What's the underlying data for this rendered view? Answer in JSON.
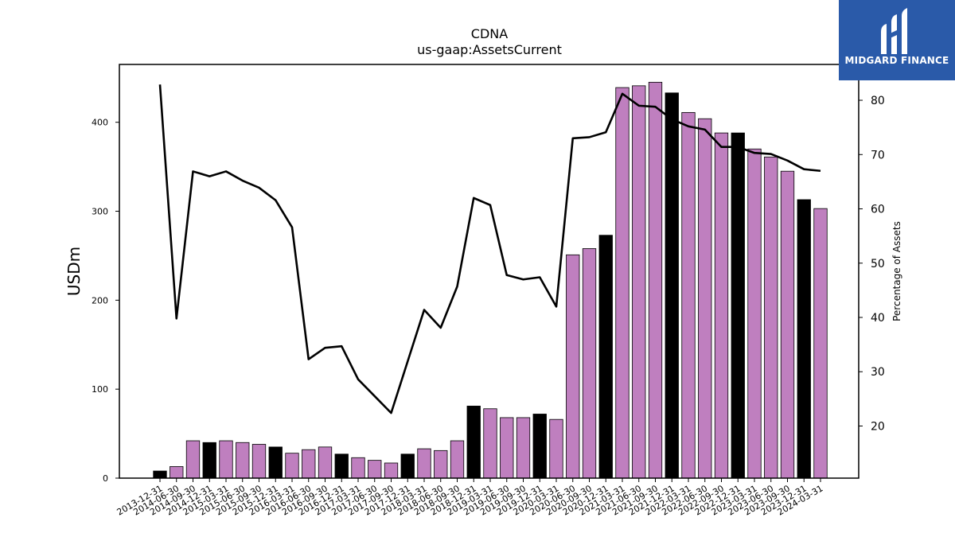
{
  "chart_data": {
    "type": "bar",
    "title": "CDNA",
    "subtitle": "us-gaap:AssetsCurrent",
    "ylabel": "USDm",
    "y2label": "Percentage of Assets",
    "ylim": [
      0,
      465
    ],
    "y2lim": [
      10.4,
      86.6
    ],
    "yticks": [
      0,
      100,
      200,
      300,
      400
    ],
    "y2ticks": [
      20,
      30,
      40,
      50,
      60,
      70,
      80
    ],
    "colors": {
      "bar": "#bf7fbf",
      "bar_highlight": "#000000",
      "line": "#000000"
    },
    "categories": [
      "2013-12-31",
      "2014-06-30",
      "2014-09-30",
      "2014-12-31",
      "2015-03-31",
      "2015-06-30",
      "2015-09-30",
      "2015-12-31",
      "2016-03-31",
      "2016-06-30",
      "2016-09-30",
      "2016-12-31",
      "2017-03-31",
      "2017-06-30",
      "2017-09-30",
      "2017-12-31",
      "2018-03-31",
      "2018-06-30",
      "2018-09-30",
      "2018-12-31",
      "2019-03-31",
      "2019-06-30",
      "2019-09-30",
      "2019-12-31",
      "2020-03-31",
      "2020-06-30",
      "2020-09-30",
      "2020-12-31",
      "2021-03-31",
      "2021-06-30",
      "2021-09-30",
      "2021-12-31",
      "2022-03-31",
      "2022-06-30",
      "2022-09-30",
      "2022-12-31",
      "2023-03-31",
      "2023-06-30",
      "2023-09-30",
      "2023-12-31",
      "2024-03-31"
    ],
    "series": [
      {
        "values": [
          8,
          13,
          42,
          40,
          42,
          40,
          38,
          35,
          28,
          32,
          35,
          27,
          23,
          20,
          17,
          27,
          33,
          31,
          42,
          81,
          78,
          68,
          68,
          72,
          66,
          251,
          258,
          273,
          439,
          441,
          445,
          433,
          411,
          404,
          388,
          388,
          370,
          361,
          345,
          313,
          303
        ],
        "highlight": [
          true,
          false,
          false,
          true,
          false,
          false,
          false,
          true,
          false,
          false,
          false,
          true,
          false,
          false,
          false,
          true,
          false,
          false,
          false,
          true,
          false,
          false,
          false,
          true,
          false,
          false,
          false,
          true,
          false,
          false,
          false,
          true,
          false,
          false,
          false,
          true,
          false,
          false,
          false,
          true,
          false
        ]
      },
      {
        "axis": "right",
        "values": [
          82.9,
          39.8,
          66.9,
          66.0,
          66.9,
          65.2,
          63.9,
          61.6,
          56.6,
          32.3,
          34.4,
          34.7,
          28.6,
          25.5,
          22.4,
          31.9,
          41.4,
          38.1,
          45.7,
          62.0,
          60.7,
          47.8,
          47.0,
          47.4,
          42.0,
          73.0,
          73.2,
          74.1,
          81.2,
          79.0,
          78.8,
          76.5,
          75.2,
          74.6,
          71.4,
          71.4,
          70.3,
          70.1,
          68.9,
          67.3,
          67.0
        ]
      }
    ]
  },
  "brand": {
    "name": "MIDGARD FINANCE",
    "logo_icon": "midgard-m-logo-icon"
  }
}
